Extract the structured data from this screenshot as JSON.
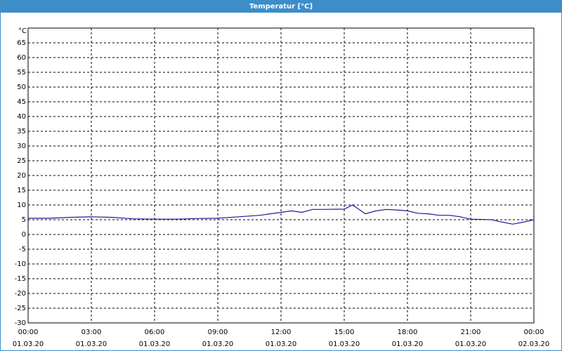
{
  "chart_data": {
    "type": "line",
    "title": "Temperatur [°C]",
    "y_unit": "°C",
    "x": [
      0,
      1,
      2,
      3,
      4,
      5,
      6,
      7,
      8,
      9,
      10,
      11,
      12,
      12.5,
      13,
      13.5,
      14,
      15,
      15.4,
      15.8,
      16,
      16.5,
      17,
      17.5,
      18,
      18.5,
      19,
      19.5,
      20,
      20.5,
      21,
      22,
      22.5,
      23,
      23.5,
      24
    ],
    "series": [
      {
        "name": "Temperatur",
        "color": "#1a1a9c",
        "values": [
          5.5,
          5.5,
          5.8,
          6,
          5.8,
          5.3,
          5.2,
          5.2,
          5.4,
          5.5,
          6,
          6.5,
          7.5,
          8,
          7.5,
          8.5,
          8.5,
          8.6,
          10,
          8,
          7,
          8,
          8.5,
          8.3,
          8,
          7.2,
          7,
          6.5,
          6.5,
          6,
          5.2,
          5,
          4.2,
          3.5,
          4.2,
          5
        ]
      }
    ],
    "xlim": [
      0,
      24
    ],
    "xticks": [
      {
        "value": 0,
        "label": "00:00"
      },
      {
        "value": 3,
        "label": "03:00"
      },
      {
        "value": 6,
        "label": "06:00"
      },
      {
        "value": 9,
        "label": "09:00"
      },
      {
        "value": 12,
        "label": "12:00"
      },
      {
        "value": 15,
        "label": "15:00"
      },
      {
        "value": 18,
        "label": "18:00"
      },
      {
        "value": 21,
        "label": "21:00"
      },
      {
        "value": 24,
        "label": "00:00"
      }
    ],
    "xtick_dates": [
      "01.03.20",
      "01.03.20",
      "01.03.20",
      "01.03.20",
      "01.03.20",
      "01.03.20",
      "01.03.20",
      "01.03.20",
      "02.03.20"
    ],
    "ylim": [
      -30,
      70
    ],
    "yticks": [
      -30,
      -25,
      -20,
      -15,
      -10,
      -5,
      0,
      5,
      10,
      15,
      20,
      25,
      30,
      35,
      40,
      45,
      50,
      55,
      60,
      65
    ],
    "grid": true
  }
}
